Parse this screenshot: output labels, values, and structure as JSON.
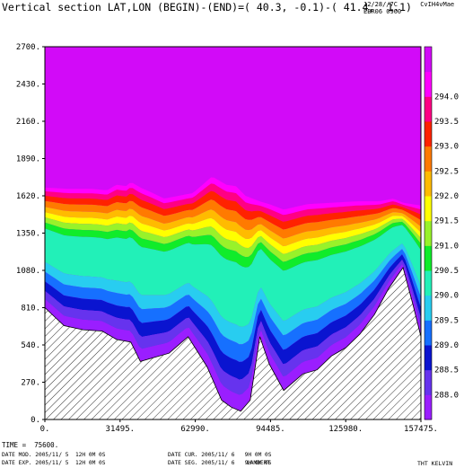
{
  "header": {
    "title": "Vertical section LAT,LON (BEGIN)-(END)=( 40.3, -0.1)-( 41.4,  1.1)",
    "stamp_line1": "12/28//7C      CvIH4vMae",
    "stamp_line2": "EBR06 0900"
  },
  "footer": {
    "time": "TIME =  75600.",
    "date_mod": "DATE MOD. 2005/11/ 5  12H 0M 0S",
    "date_exp": "DATE EXP. 2005/11/ 5  12H 0M 0S",
    "date_cur": "DATE CUR. 2005/11/ 6   9H 0M 0S",
    "date_seg": "DATE SEG. 2005/11/ 6   9H 0M 0S",
    "projection": "LAMBERT",
    "variable": "THT KELVIN"
  },
  "chart_data": {
    "type": "heatmap",
    "xlim": [
      0,
      157475
    ],
    "ylim": [
      0,
      2700
    ],
    "x_ticks": [
      "0.",
      "31495.",
      "62990.",
      "94485.",
      "125980.",
      "157475."
    ],
    "y_ticks": [
      "0.",
      "270.",
      "540.",
      "810.",
      "1080.",
      "1350.",
      "1620.",
      "1890.",
      "2160.",
      "2430.",
      "2700."
    ],
    "colorbar_labels": [
      "288.0",
      "288.5",
      "289.0",
      "289.5",
      "290.0",
      "290.5",
      "291.0",
      "291.5",
      "292.0",
      "292.5",
      "293.0",
      "293.5",
      "294.0"
    ],
    "colors": [
      "#9a1eff",
      "#6633ee",
      "#0a14d0",
      "#1670ff",
      "#28cdf0",
      "#22f0b8",
      "#10ec2a",
      "#98f22a",
      "#ffff00",
      "#ffbb00",
      "#ff7a00",
      "#ff2200",
      "#ff0084",
      "#ff00ff",
      "#d20af8"
    ],
    "terrain": {
      "x": [
        0,
        8000,
        16000,
        24000,
        30000,
        36000,
        40000,
        46000,
        52000,
        60000,
        68000,
        74000,
        78000,
        82000,
        86000,
        90000,
        94000,
        100000,
        108000,
        114000,
        120000,
        126000,
        132000,
        138000,
        144000,
        150000,
        154000,
        157475
      ],
      "y": [
        810,
        680,
        650,
        640,
        580,
        560,
        420,
        450,
        480,
        600,
        380,
        140,
        90,
        60,
        140,
        600,
        400,
        210,
        330,
        360,
        460,
        520,
        620,
        760,
        950,
        1100,
        840,
        600
      ]
    },
    "theta_layers_elevation": [
      {
        "x": [
          0,
          10000,
          20000,
          26000,
          30000,
          34000,
          36000,
          40000,
          44000,
          50000,
          56000,
          62000,
          70000,
          76000,
          80000,
          84000,
          90000,
          94000,
          100000,
          110000,
          120000,
          130000,
          140000,
          146000,
          150000,
          157475
        ],
        "h": [
          1680,
          1670,
          1670,
          1660,
          1700,
          1690,
          1720,
          1680,
          1650,
          1600,
          1620,
          1640,
          1760,
          1700,
          1690,
          1620,
          1580,
          1560,
          1520,
          1560,
          1570,
          1580,
          1580,
          1600,
          1570,
          1550
        ],
        "note": "approx. 294.0 K isoline"
      }
    ]
  }
}
